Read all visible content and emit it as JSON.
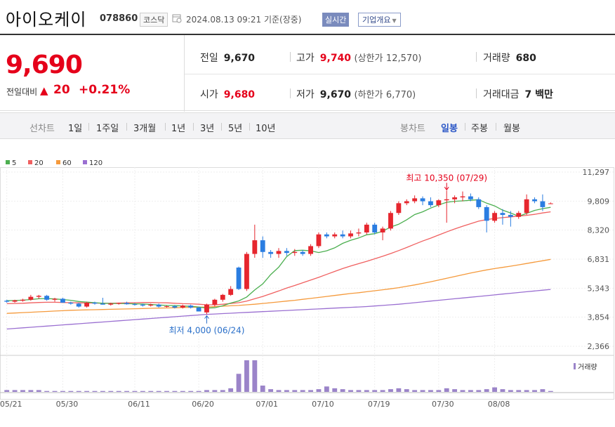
{
  "header": {
    "name": "아이오케이",
    "code": "078860",
    "market": "코스닥",
    "datetime": "2024.08.13 09:21",
    "basis": "기준(장중)",
    "realtime": "실시간",
    "company_overview": "기업개요"
  },
  "quote": {
    "price": "9,690",
    "change_label": "전일대비",
    "change_arrow": "▲",
    "change_value": "20",
    "change_pct": "+0.21%",
    "prev_close_label": "전일",
    "prev_close": "9,670",
    "high_label": "고가",
    "high": "9,740",
    "upper_limit_label": "(상한가",
    "upper_limit": "12,570)",
    "volume_label": "거래량",
    "volume": "680",
    "open_label": "시가",
    "open": "9,680",
    "low_label": "저가",
    "low": "9,670",
    "lower_limit_label": "(하한가",
    "lower_limit": "6,770)",
    "amount_label": "거래대금",
    "amount": "7 백만"
  },
  "toolbar": {
    "line_chart_label": "선차트",
    "periods": [
      "1일",
      "1주일",
      "3개월",
      "1년",
      "3년",
      "5년",
      "10년"
    ],
    "candle_label": "봉차트",
    "candle_periods": [
      "일봉",
      "주봉",
      "월봉"
    ],
    "active_candle": "일봉"
  },
  "chart_data": {
    "type": "candlestick",
    "ma_legend": [
      {
        "name": "5",
        "color": "#4caf50"
      },
      {
        "name": "20",
        "color": "#f06060"
      },
      {
        "name": "60",
        "color": "#f59a3c"
      },
      {
        "name": "120",
        "color": "#9a6fd1"
      }
    ],
    "y_ticks": [
      "11,297",
      "9,809",
      "8,320",
      "6,831",
      "5,343",
      "3,854",
      "2,366"
    ],
    "ylim": [
      2366,
      11297
    ],
    "x_ticks": [
      "05/21",
      "05/30",
      "06/11",
      "06/20",
      "07/01",
      "07/10",
      "07/19",
      "07/30",
      "08/08"
    ],
    "annotation_high": "최고 10,350 (07/29)",
    "annotation_low": "최저 4,000 (06/24)",
    "volume_label": "거래량",
    "candles": [
      {
        "o": 4700,
        "h": 4750,
        "l": 4600,
        "c": 4650
      },
      {
        "o": 4650,
        "h": 4750,
        "l": 4600,
        "c": 4720
      },
      {
        "o": 4700,
        "h": 4800,
        "l": 4650,
        "c": 4750
      },
      {
        "o": 4750,
        "h": 5000,
        "l": 4700,
        "c": 4900
      },
      {
        "o": 4900,
        "h": 5000,
        "l": 4800,
        "c": 4950
      },
      {
        "o": 4950,
        "h": 5000,
        "l": 4700,
        "c": 4750
      },
      {
        "o": 4750,
        "h": 4850,
        "l": 4650,
        "c": 4800
      },
      {
        "o": 4800,
        "h": 4850,
        "l": 4600,
        "c": 4600
      },
      {
        "o": 4600,
        "h": 4650,
        "l": 4500,
        "c": 4550
      },
      {
        "o": 4550,
        "h": 4600,
        "l": 4350,
        "c": 4400
      },
      {
        "o": 4400,
        "h": 4650,
        "l": 4350,
        "c": 4600
      },
      {
        "o": 4600,
        "h": 4650,
        "l": 4500,
        "c": 4550
      },
      {
        "o": 4550,
        "h": 4850,
        "l": 4500,
        "c": 4500
      },
      {
        "o": 4500,
        "h": 4600,
        "l": 4450,
        "c": 4550
      },
      {
        "o": 4550,
        "h": 4600,
        "l": 4500,
        "c": 4580
      },
      {
        "o": 4580,
        "h": 4650,
        "l": 4500,
        "c": 4520
      },
      {
        "o": 4520,
        "h": 4580,
        "l": 4450,
        "c": 4500
      },
      {
        "o": 4500,
        "h": 4550,
        "l": 4400,
        "c": 4450
      },
      {
        "o": 4450,
        "h": 4550,
        "l": 4400,
        "c": 4500
      },
      {
        "o": 4500,
        "h": 4550,
        "l": 4350,
        "c": 4400
      },
      {
        "o": 4400,
        "h": 4450,
        "l": 4350,
        "c": 4420
      },
      {
        "o": 4420,
        "h": 4480,
        "l": 4300,
        "c": 4350
      },
      {
        "o": 4350,
        "h": 4500,
        "l": 4300,
        "c": 4450
      },
      {
        "o": 4450,
        "h": 4500,
        "l": 4300,
        "c": 4350
      },
      {
        "o": 4350,
        "h": 4400,
        "l": 4150,
        "c": 4150
      },
      {
        "o": 4100,
        "h": 4550,
        "l": 4000,
        "c": 4500
      },
      {
        "o": 4500,
        "h": 4800,
        "l": 4400,
        "c": 4750
      },
      {
        "o": 4750,
        "h": 5050,
        "l": 4650,
        "c": 5000
      },
      {
        "o": 5000,
        "h": 5450,
        "l": 4950,
        "c": 5300
      },
      {
        "o": 6400,
        "h": 6450,
        "l": 5250,
        "c": 5300
      },
      {
        "o": 5300,
        "h": 7200,
        "l": 5200,
        "c": 7100
      },
      {
        "o": 7100,
        "h": 8600,
        "l": 6900,
        "c": 7800
      },
      {
        "o": 7800,
        "h": 8000,
        "l": 6900,
        "c": 7200
      },
      {
        "o": 7200,
        "h": 7300,
        "l": 6900,
        "c": 7100
      },
      {
        "o": 7100,
        "h": 7400,
        "l": 6900,
        "c": 7250
      },
      {
        "o": 7250,
        "h": 7400,
        "l": 7000,
        "c": 7150
      },
      {
        "o": 7150,
        "h": 7350,
        "l": 7000,
        "c": 7200
      },
      {
        "o": 7200,
        "h": 7300,
        "l": 7000,
        "c": 7100
      },
      {
        "o": 7100,
        "h": 7600,
        "l": 7000,
        "c": 7500
      },
      {
        "o": 7500,
        "h": 8200,
        "l": 7400,
        "c": 8100
      },
      {
        "o": 8100,
        "h": 8200,
        "l": 7900,
        "c": 8000
      },
      {
        "o": 8000,
        "h": 8200,
        "l": 7900,
        "c": 8100
      },
      {
        "o": 8100,
        "h": 8300,
        "l": 7900,
        "c": 8000
      },
      {
        "o": 8000,
        "h": 8300,
        "l": 7900,
        "c": 8150
      },
      {
        "o": 8150,
        "h": 8400,
        "l": 8000,
        "c": 8200
      },
      {
        "o": 8200,
        "h": 8700,
        "l": 8100,
        "c": 8600
      },
      {
        "o": 8600,
        "h": 8700,
        "l": 8100,
        "c": 8200
      },
      {
        "o": 8200,
        "h": 8500,
        "l": 7800,
        "c": 8400
      },
      {
        "o": 8400,
        "h": 9300,
        "l": 8300,
        "c": 9200
      },
      {
        "o": 9200,
        "h": 9800,
        "l": 9100,
        "c": 9700
      },
      {
        "o": 9700,
        "h": 9900,
        "l": 9600,
        "c": 9800
      },
      {
        "o": 9800,
        "h": 10100,
        "l": 9700,
        "c": 9950
      },
      {
        "o": 9950,
        "h": 10050,
        "l": 9600,
        "c": 9800
      },
      {
        "o": 9800,
        "h": 10000,
        "l": 9500,
        "c": 9600
      },
      {
        "o": 9600,
        "h": 9900,
        "l": 9500,
        "c": 9850
      },
      {
        "o": 9850,
        "h": 10350,
        "l": 8700,
        "c": 9900
      },
      {
        "o": 9900,
        "h": 10100,
        "l": 9700,
        "c": 10000
      },
      {
        "o": 10000,
        "h": 10300,
        "l": 9800,
        "c": 10050
      },
      {
        "o": 10050,
        "h": 10200,
        "l": 9800,
        "c": 9900
      },
      {
        "o": 9900,
        "h": 10000,
        "l": 9400,
        "c": 9500
      },
      {
        "o": 9500,
        "h": 9600,
        "l": 8200,
        "c": 8800
      },
      {
        "o": 8800,
        "h": 9300,
        "l": 8700,
        "c": 9200
      },
      {
        "o": 9200,
        "h": 9400,
        "l": 8600,
        "c": 9100
      },
      {
        "o": 9100,
        "h": 9300,
        "l": 8500,
        "c": 9000
      },
      {
        "o": 9000,
        "h": 9300,
        "l": 8900,
        "c": 9200
      },
      {
        "o": 9200,
        "h": 10150,
        "l": 9100,
        "c": 9900
      },
      {
        "o": 9900,
        "h": 10000,
        "l": 9700,
        "c": 9800
      },
      {
        "o": 9800,
        "h": 10150,
        "l": 9300,
        "c": 9500
      },
      {
        "o": 9680,
        "h": 9740,
        "l": 9670,
        "c": 9690
      }
    ],
    "ma5": [
      4700,
      4710,
      4730,
      4760,
      4800,
      4810,
      4790,
      4760,
      4720,
      4660,
      4630,
      4600,
      4570,
      4560,
      4560,
      4550,
      4540,
      4530,
      4510,
      4480,
      4460,
      4450,
      4430,
      4410,
      4380,
      4320,
      4340,
      4440,
      4580,
      4690,
      4890,
      5250,
      5560,
      6040,
      6420,
      6960,
      7270,
      7290,
      7260,
      7170,
      7260,
      7410,
      7640,
      7800,
      7920,
      8080,
      8140,
      8260,
      8480,
      8620,
      8850,
      9120,
      9260,
      9450,
      9610,
      9750,
      9800,
      9820,
      9850,
      9880,
      9700,
      9560,
      9340,
      9200,
      9030,
      9180,
      9330,
      9420,
      9490
    ],
    "ma20": [
      4550,
      4560,
      4570,
      4590,
      4610,
      4620,
      4620,
      4610,
      4600,
      4590,
      4580,
      4580,
      4570,
      4570,
      4580,
      4590,
      4600,
      4610,
      4610,
      4600,
      4590,
      4570,
      4550,
      4540,
      4520,
      4490,
      4490,
      4520,
      4560,
      4600,
      4680,
      4800,
      4920,
      5060,
      5200,
      5350,
      5480,
      5620,
      5760,
      5900,
      6050,
      6200,
      6350,
      6480,
      6600,
      6720,
      6850,
      6980,
      7120,
      7270,
      7430,
      7600,
      7760,
      7910,
      8070,
      8230,
      8380,
      8520,
      8650,
      8780,
      8860,
      8920,
      8960,
      9000,
      9040,
      9080,
      9130,
      9200,
      9260
    ],
    "ma60": [
      4050,
      4070,
      4090,
      4110,
      4130,
      4150,
      4170,
      4190,
      4210,
      4220,
      4230,
      4240,
      4250,
      4260,
      4270,
      4280,
      4290,
      4300,
      4310,
      4320,
      4330,
      4340,
      4350,
      4360,
      4370,
      4380,
      4400,
      4420,
      4440,
      4460,
      4490,
      4520,
      4560,
      4600,
      4640,
      4680,
      4720,
      4770,
      4820,
      4870,
      4920,
      4970,
      5020,
      5070,
      5110,
      5160,
      5210,
      5260,
      5310,
      5370,
      5440,
      5510,
      5590,
      5670,
      5760,
      5850,
      5940,
      6030,
      6120,
      6200,
      6280,
      6350,
      6410,
      6470,
      6540,
      6610,
      6680,
      6750,
      6820
    ],
    "ma120": [
      3250,
      3280,
      3310,
      3340,
      3370,
      3400,
      3430,
      3460,
      3490,
      3520,
      3550,
      3580,
      3610,
      3640,
      3670,
      3700,
      3730,
      3760,
      3790,
      3820,
      3850,
      3880,
      3910,
      3940,
      3970,
      4000,
      4020,
      4040,
      4060,
      4080,
      4100,
      4120,
      4140,
      4160,
      4180,
      4200,
      4220,
      4240,
      4260,
      4280,
      4300,
      4320,
      4340,
      4360,
      4380,
      4400,
      4430,
      4460,
      4490,
      4520,
      4560,
      4600,
      4640,
      4680,
      4720,
      4760,
      4800,
      4840,
      4880,
      4920,
      4960,
      5000,
      5040,
      5080,
      5120,
      5160,
      5200,
      5240,
      5280
    ],
    "volume": [
      2,
      2,
      2,
      2,
      2,
      1,
      1,
      1,
      1,
      1,
      1,
      1,
      1,
      1,
      1,
      1,
      1,
      1,
      1,
      1,
      1,
      1,
      1,
      1,
      1,
      2,
      2,
      2,
      4,
      20,
      35,
      35,
      7,
      3,
      2,
      2,
      2,
      2,
      2,
      3,
      6,
      4,
      3,
      2,
      2,
      2,
      2,
      2,
      3,
      4,
      3,
      2,
      2,
      2,
      2,
      4,
      3,
      2,
      2,
      2,
      3,
      5,
      3,
      2,
      2,
      2,
      2,
      3,
      1
    ]
  }
}
